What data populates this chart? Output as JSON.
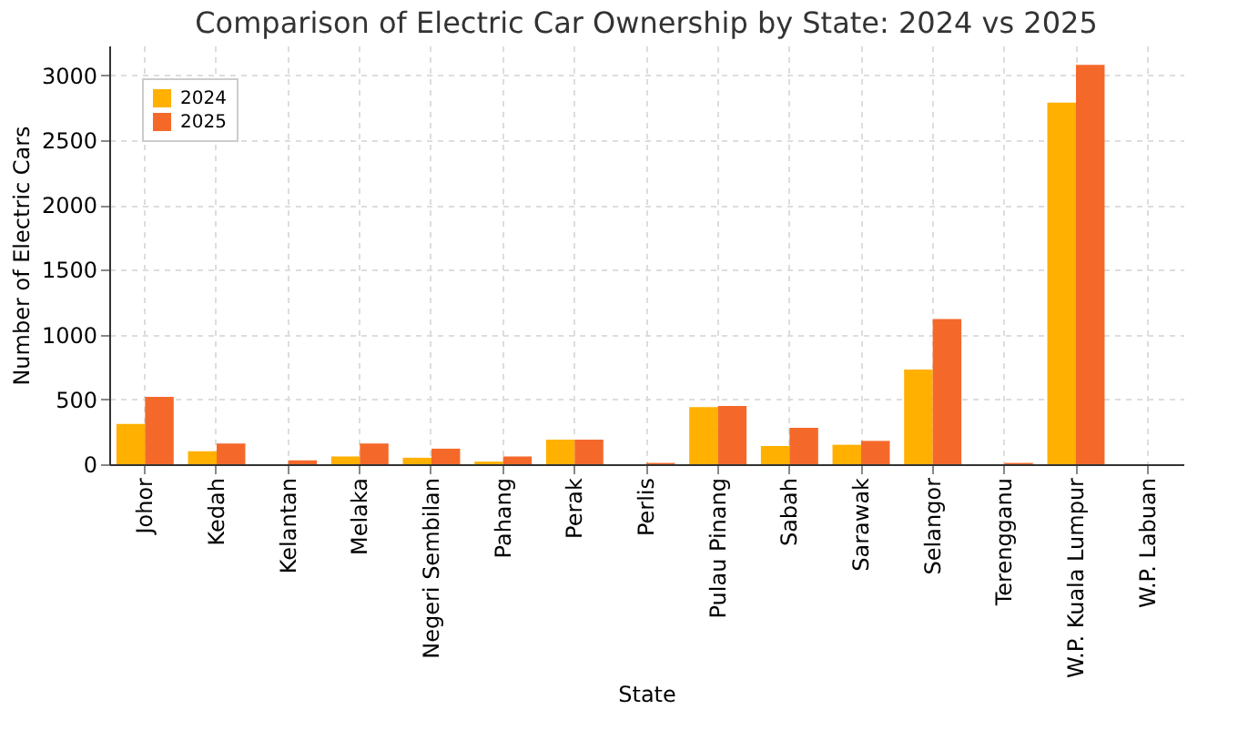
{
  "chart_data": {
    "type": "bar",
    "title": "Comparison of Electric Car Ownership by State: 2024 vs 2025",
    "xlabel": "State",
    "ylabel": "Number of Electric Cars",
    "categories": [
      "Johor",
      "Kedah",
      "Kelantan",
      "Melaka",
      "Negeri Sembilan",
      "Pahang",
      "Perak",
      "Perlis",
      "Pulau Pinang",
      "Sabah",
      "Sarawak",
      "Selangor",
      "Terengganu",
      "W.P. Kuala Lumpur",
      "W.P. Labuan"
    ],
    "series": [
      {
        "name": "2024",
        "color": "#ffb000",
        "values": [
          310,
          100,
          0,
          60,
          50,
          20,
          190,
          0,
          440,
          140,
          150,
          730,
          0,
          2790,
          0
        ]
      },
      {
        "name": "2025",
        "color": "#f4692a",
        "values": [
          520,
          160,
          30,
          160,
          120,
          60,
          190,
          10,
          450,
          280,
          180,
          1120,
          10,
          3080,
          0
        ]
      }
    ],
    "ylim": [
      0,
      3230
    ],
    "yticks": [
      0,
      500,
      1000,
      1500,
      2000,
      2500,
      3000
    ],
    "grid": true,
    "legend": "top left"
  }
}
